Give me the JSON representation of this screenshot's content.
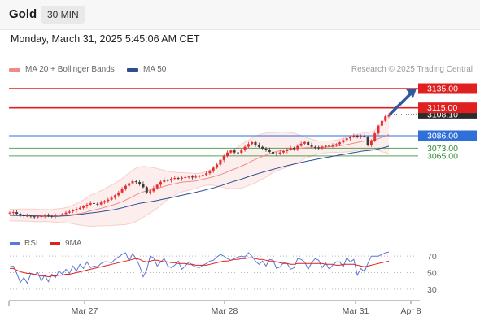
{
  "header": {
    "instrument": "Gold",
    "interval": "30 MIN"
  },
  "timestamp": "Monday, March 31, 2025 5:45:06 AM CET",
  "legend": {
    "ma20": {
      "label": "MA 20 + Bollinger Bands",
      "color": "#f08a8a"
    },
    "ma50": {
      "label": "MA 50",
      "color": "#2e4f8f"
    }
  },
  "credit": "Research © 2025 Trading Central",
  "chart_data": {
    "type": "candlestick",
    "price_axis": {
      "range": [
        2988,
        3146
      ],
      "position": "right"
    },
    "x_labels": [
      "Mar 27",
      "Mar 28",
      "Mar 31",
      "Apr 8"
    ],
    "last_price": {
      "value": 3108.1,
      "label": "3108.10",
      "color": "#333333"
    },
    "levels": [
      {
        "value": 3135.0,
        "label": "3135.00",
        "type": "resistance",
        "color": "#e02020"
      },
      {
        "value": 3115.0,
        "label": "3115.00",
        "type": "resistance",
        "color": "#e02020"
      },
      {
        "value": 3086.0,
        "label": "3086.00",
        "type": "pivot",
        "color": "#2f6fd8"
      },
      {
        "value": 3073.0,
        "label": "3073.00",
        "type": "support",
        "color": "#2f8a2f"
      },
      {
        "value": 3065.0,
        "label": "3065.00",
        "type": "support",
        "color": "#2f8a2f"
      }
    ],
    "projection": {
      "from": 3109,
      "to": 3135,
      "direction": "up"
    },
    "series": [
      {
        "name": "Gold 30 MIN",
        "values": [
          3006.0,
          3006.4,
          3004.8,
          3003.2,
          3002.5,
          3002.8,
          3002.1,
          3001.5,
          3001.9,
          3002.4,
          3003.0,
          3002.6,
          3002.2,
          3003.5,
          3004.0,
          3004.6,
          3006.0,
          3007.2,
          3008.5,
          3009.8,
          3011.0,
          3012.7,
          3014.3,
          3016.0,
          3015.2,
          3014.6,
          3016.5,
          3018.1,
          3019.6,
          3021.4,
          3024.0,
          3027.0,
          3030.5,
          3034.0,
          3036.6,
          3038.6,
          3037.8,
          3036.2,
          3032.5,
          3027.0,
          3028.2,
          3031.6,
          3035.0,
          3038.0,
          3040.0,
          3039.4,
          3041.2,
          3042.0,
          3041.2,
          3042.5,
          3043.0,
          3043.5,
          3042.8,
          3043.5,
          3044.3,
          3045.2,
          3047.0,
          3049.5,
          3052.7,
          3056.0,
          3060.8,
          3064.8,
          3068.5,
          3070.6,
          3068.6,
          3068.2,
          3071.4,
          3074.5,
          3077.3,
          3079.3,
          3076.5,
          3074.4,
          3072.6,
          3071.4,
          3069.2,
          3067.5,
          3066.9,
          3068.6,
          3070.0,
          3071.5,
          3073.3,
          3072.1,
          3075.4,
          3077.7,
          3079.4,
          3076.7,
          3074.4,
          3073.8,
          3073.0,
          3074.5,
          3075.5,
          3074.8,
          3076.0,
          3077.2,
          3079.0,
          3081.5,
          3083.2,
          3084.8,
          3086.0,
          3085.0,
          3085.7,
          3084.9,
          3076.5,
          3080.6,
          3088.4,
          3096.4,
          3101.5,
          3106.0,
          3108.1
        ]
      },
      {
        "name": "MA 20",
        "values": [
          3003.5,
          3003.4,
          3003.5,
          3003.5,
          3003.4,
          3003.4,
          3003.3,
          3003.3,
          3003.1,
          3003.0,
          3003.0,
          3002.9,
          3002.9,
          3002.9,
          3003.0,
          3003.1,
          3003.3,
          3003.6,
          3004.1,
          3004.6,
          3005.1,
          3005.9,
          3006.8,
          3007.9,
          3008.8,
          3009.6,
          3010.6,
          3011.6,
          3012.6,
          3013.6,
          3014.7,
          3016.0,
          3017.4,
          3019.1,
          3020.9,
          3022.7,
          3024.5,
          3026.1,
          3027.6,
          3028.6,
          3029.5,
          3030.3,
          3031.3,
          3032.3,
          3033.4,
          3034.4,
          3035.3,
          3036.1,
          3036.9,
          3037.6,
          3038.0,
          3038.3,
          3038.6,
          3039.0,
          3039.8,
          3040.8,
          3041.6,
          3042.4,
          3043.4,
          3044.4,
          3045.6,
          3046.9,
          3048.4,
          3050.0,
          3051.4,
          3052.8,
          3054.3,
          3056.0,
          3057.8,
          3059.7,
          3061.4,
          3063.0,
          3064.5,
          3065.9,
          3067.3,
          3068.5,
          3069.5,
          3070.3,
          3070.9,
          3071.4,
          3072.0,
          3072.4,
          3072.7,
          3073.0,
          3073.4,
          3073.5,
          3073.6,
          3073.6,
          3073.8,
          3074.0,
          3074.3,
          3074.5,
          3074.7,
          3075.1,
          3075.6,
          3076.1,
          3076.7,
          3077.5,
          3078.3,
          3079.1,
          3079.8,
          3080.4,
          3080.6,
          3081.0,
          3081.9,
          3083.0,
          3084.3,
          3085.7,
          3087.3
        ]
      },
      {
        "name": "MA 50",
        "values": [
          3003.2,
          3003.1,
          3003.0,
          3003.0,
          3002.9,
          3002.8,
          3002.7,
          3002.6,
          3002.5,
          3002.4,
          3002.3,
          3002.3,
          3002.2,
          3002.2,
          3002.3,
          3002.5,
          3002.7,
          3003.0,
          3003.4,
          3003.8,
          3004.2,
          3004.7,
          3005.2,
          3005.7,
          3006.1,
          3006.5,
          3007.0,
          3007.6,
          3008.1,
          3008.7,
          3009.4,
          3010.2,
          3011.0,
          3012.0,
          3012.9,
          3013.9,
          3014.8,
          3015.6,
          3016.3,
          3016.8,
          3017.4,
          3018.0,
          3018.7,
          3019.4,
          3020.2,
          3020.9,
          3021.7,
          3022.5,
          3023.2,
          3024.0,
          3024.8,
          3025.6,
          3026.4,
          3027.2,
          3028.1,
          3028.9,
          3029.8,
          3030.8,
          3031.7,
          3032.8,
          3033.9,
          3035.1,
          3036.3,
          3037.6,
          3038.7,
          3039.8,
          3041.0,
          3042.2,
          3043.4,
          3044.7,
          3045.8,
          3046.9,
          3048.0,
          3049.0,
          3050.0,
          3051.0,
          3052.0,
          3052.9,
          3053.9,
          3054.8,
          3055.7,
          3056.5,
          3057.3,
          3058.2,
          3059.0,
          3059.8,
          3060.5,
          3061.2,
          3061.9,
          3062.6,
          3063.3,
          3063.9,
          3064.6,
          3065.2,
          3065.9,
          3066.5,
          3067.1,
          3067.8,
          3068.4,
          3069.0,
          3069.7,
          3070.2,
          3070.5,
          3070.9,
          3071.5,
          3072.3,
          3073.2,
          3074.1,
          3075.1
        ]
      }
    ],
    "bollinger": {
      "upper": [
        3009.5,
        3009.6,
        3009.6,
        3009.7,
        3009.8,
        3009.7,
        3009.7,
        3009.8,
        3009.5,
        3009.3,
        3009.3,
        3009.2,
        3009.4,
        3009.7,
        3010.2,
        3010.5,
        3011.3,
        3012.3,
        3013.8,
        3015.6,
        3017.1,
        3019.2,
        3021.5,
        3024.0,
        3025.7,
        3027.0,
        3029.0,
        3030.8,
        3032.7,
        3034.6,
        3036.4,
        3038.9,
        3041.4,
        3044.6,
        3047.5,
        3050.2,
        3052.2,
        3053.5,
        3054.1,
        3053.8,
        3053.3,
        3052.7,
        3052.0,
        3050.9,
        3050.1,
        3049.1,
        3048.5,
        3048.1,
        3047.6,
        3047.7,
        3047.5,
        3047.3,
        3047.1,
        3047.0,
        3047.1,
        3047.8,
        3048.7,
        3050.1,
        3052.3,
        3055.1,
        3058.2,
        3061.7,
        3065.4,
        3069.0,
        3071.8,
        3074.5,
        3077.0,
        3079.5,
        3081.4,
        3083.8,
        3085.7,
        3087.0,
        3088.0,
        3088.8,
        3089.2,
        3089.3,
        3089.5,
        3089.7,
        3089.7,
        3089.5,
        3089.1,
        3088.6,
        3087.4,
        3086.2,
        3084.7,
        3083.5,
        3082.4,
        3081.4,
        3080.6,
        3080.5,
        3080.5,
        3080.6,
        3080.9,
        3081.5,
        3082.4,
        3083.4,
        3084.3,
        3085.5,
        3086.6,
        3087.5,
        3088.4,
        3089.2,
        3089.3,
        3089.9,
        3092.0,
        3095.2,
        3099.3,
        3103.0,
        3107.3
      ],
      "lower": [
        2997.5,
        2997.3,
        2997.4,
        2997.3,
        2997.1,
        2997.1,
        2996.9,
        2996.8,
        2996.7,
        2996.7,
        2996.7,
        2996.6,
        2996.4,
        2996.1,
        2995.8,
        2995.7,
        2995.3,
        2994.9,
        2994.4,
        2993.6,
        2993.1,
        2992.6,
        2992.1,
        2991.8,
        2991.9,
        2992.2,
        2992.2,
        2992.4,
        2992.5,
        2992.6,
        2993.0,
        2993.1,
        2993.4,
        2993.6,
        2994.3,
        2995.2,
        2996.8,
        2998.7,
        3001.1,
        3003.4,
        3005.7,
        3007.9,
        3010.6,
        3013.7,
        3016.7,
        3019.7,
        3022.1,
        3024.1,
        3026.2,
        3027.5,
        3028.5,
        3029.3,
        3030.1,
        3031.0,
        3032.5,
        3033.8,
        3034.5,
        3034.7,
        3034.5,
        3033.7,
        3033.0,
        3032.1,
        3031.4,
        3031.0,
        3031.0,
        3031.1,
        3031.6,
        3032.5,
        3034.2,
        3035.6,
        3037.1,
        3039.0,
        3041.0,
        3043.0,
        3045.4,
        3047.7,
        3049.5,
        3050.9,
        3052.1,
        3053.3,
        3054.9,
        3056.2,
        3058.0,
        3059.8,
        3062.1,
        3063.5,
        3064.8,
        3065.8,
        3067.0,
        3067.5,
        3068.1,
        3068.4,
        3068.5,
        3068.7,
        3068.8,
        3068.8,
        3069.1,
        3069.5,
        3070.0,
        3070.7,
        3071.2,
        3071.6,
        3071.9,
        3072.1,
        3071.8,
        3070.8,
        3069.3,
        3068.4,
        3067.3
      ]
    },
    "rsi": {
      "axis_ticks": [
        "70",
        "50",
        "30"
      ],
      "range": [
        20,
        80
      ],
      "legend": [
        {
          "label": "RSI",
          "color": "#5a78d6"
        },
        {
          "label": "9MA",
          "color": "#e02020"
        }
      ],
      "rsi_values": [
        57,
        58,
        49,
        38,
        44,
        37,
        49,
        47,
        50,
        40,
        47,
        39,
        48,
        44,
        52,
        48,
        54,
        49,
        58,
        52,
        60,
        55,
        63,
        56,
        58,
        57,
        61,
        63,
        63,
        62,
        66,
        69,
        72,
        74,
        64,
        73,
        67,
        58,
        45,
        53,
        70,
        68,
        58,
        63,
        67,
        58,
        56,
        59,
        64,
        54,
        58,
        63,
        59,
        57,
        56,
        59,
        61,
        64,
        65,
        69,
        72,
        70,
        67,
        65,
        67,
        69,
        70,
        69,
        74,
        70,
        64,
        60,
        64,
        58,
        66,
        65,
        55,
        57,
        62,
        61,
        54,
        56,
        67,
        66,
        63,
        54,
        62,
        67,
        65,
        56,
        62,
        54,
        59,
        63,
        63,
        57,
        68,
        63,
        66,
        47,
        55,
        51,
        61,
        70,
        70,
        70,
        72,
        74,
        75
      ],
      "ma_values": [
        55,
        55,
        53,
        51,
        50,
        49,
        49,
        48,
        47,
        46,
        46,
        45,
        46,
        46,
        47,
        47,
        48,
        48,
        49,
        50,
        51,
        52,
        53,
        54,
        55,
        56,
        57,
        58,
        59,
        60,
        61,
        62,
        63,
        64,
        65,
        66,
        67,
        66,
        64,
        63,
        64,
        65,
        65,
        64,
        63,
        63,
        62,
        62,
        61,
        61,
        61,
        60,
        60,
        59,
        59,
        59,
        59,
        60,
        61,
        62,
        63,
        64,
        64,
        65,
        66,
        66,
        67,
        67,
        68,
        68,
        67,
        66,
        66,
        65,
        64,
        64,
        63,
        62,
        61,
        61,
        60,
        60,
        61,
        61,
        61,
        61,
        61,
        61,
        61,
        61,
        60,
        60,
        60,
        59,
        59,
        60,
        60,
        60,
        60,
        59,
        58,
        57,
        58,
        59,
        60,
        61,
        62,
        63,
        64
      ]
    }
  }
}
